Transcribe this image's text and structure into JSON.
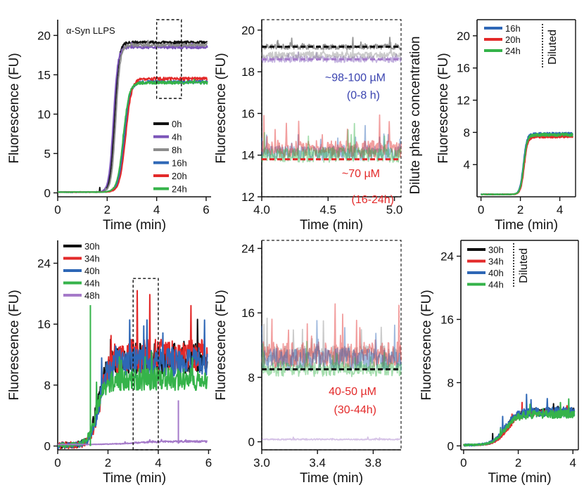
{
  "colors": {
    "black": "#111111",
    "purple": "#7b55b8",
    "gray": "#8c8c8c",
    "blue": "#2e67b6",
    "red": "#e32a2a",
    "green": "#35b34a",
    "violet": "#a57ac9",
    "annot_blue": "#3b44b0",
    "annot_red": "#e32a2a"
  },
  "chart_data": [
    {
      "id": "A",
      "type": "line",
      "annotation": "α-Syn LLPS",
      "xlabel": "Time (min)",
      "ylabel": "Fluorescence (FU)",
      "xlim": [
        0,
        6.2
      ],
      "ylim": [
        -0.5,
        22
      ],
      "xticks": [
        0,
        2,
        4,
        6
      ],
      "yticks": [
        0,
        5,
        10,
        15,
        20
      ],
      "legend_position": "right",
      "inset_box": {
        "x": [
          4,
          5
        ],
        "y": [
          12,
          23
        ]
      },
      "series": [
        {
          "name": "0h",
          "color": "black",
          "baseline": 0.1,
          "plateau": 19.1,
          "t_mid": 2.3,
          "width": 0.09
        },
        {
          "name": "4h",
          "color": "purple",
          "baseline": 0.1,
          "plateau": 18.5,
          "t_mid": 2.25,
          "width": 0.09
        },
        {
          "name": "8h",
          "color": "gray",
          "baseline": 0.1,
          "plateau": 18.8,
          "t_mid": 2.35,
          "width": 0.09
        },
        {
          "name": "16h",
          "color": "blue",
          "baseline": 0.1,
          "plateau": 14.1,
          "t_mid": 2.7,
          "width": 0.12
        },
        {
          "name": "20h",
          "color": "red",
          "baseline": 0.1,
          "plateau": 14.5,
          "t_mid": 2.75,
          "width": 0.12
        },
        {
          "name": "24h",
          "color": "green",
          "baseline": 0.1,
          "plateau": 14.0,
          "t_mid": 2.65,
          "width": 0.12
        }
      ]
    },
    {
      "id": "B",
      "type": "line",
      "xlabel": "Time (min)",
      "ylabel": "Fluorescence (FU)",
      "right_label": "Dilute phase concentration",
      "xlim": [
        4.0,
        5.05
      ],
      "ylim": [
        12,
        20.5
      ],
      "xticks": [
        4.0,
        4.5,
        5.0
      ],
      "xtick_labels": [
        "4.0",
        "4.5",
        "5.0"
      ],
      "yticks": [
        12,
        14,
        16,
        18,
        20
      ],
      "dashed_lines": [
        {
          "y": 19.2,
          "color": "black"
        },
        {
          "y": 18.6,
          "color": "violet"
        },
        {
          "y": 13.8,
          "color": "red"
        }
      ],
      "annotations": [
        {
          "text": "~98-100 µM",
          "color": "annot_blue"
        },
        {
          "text": "(0-8 h)",
          "color": "annot_blue"
        },
        {
          "text": "~70 µM",
          "color": "annot_red"
        },
        {
          "text": "(16-24h)",
          "color": "annot_red"
        }
      ],
      "series": [
        {
          "color": "black",
          "level": 19.2,
          "noise": 0.12
        },
        {
          "color": "purple",
          "level": 18.6,
          "noise": 0.15
        },
        {
          "color": "gray",
          "level": 18.8,
          "noise": 0.15
        },
        {
          "color": "blue",
          "level": 14.1,
          "noise": 0.35
        },
        {
          "color": "red",
          "level": 14.3,
          "noise": 0.4
        },
        {
          "color": "green",
          "level": 14.0,
          "noise": 0.35
        }
      ]
    },
    {
      "id": "C",
      "type": "line",
      "xlabel": "Time (min)",
      "ylabel": "Fluorescence (FU)",
      "xlim": [
        -0.2,
        4.8
      ],
      "ylim": [
        0,
        22
      ],
      "xticks": [
        0,
        2,
        4
      ],
      "yticks": [
        4,
        8,
        12,
        16,
        20
      ],
      "legend_position": "top",
      "legend_note": "Diluted",
      "series": [
        {
          "name": "16h",
          "color": "blue",
          "baseline": 0.3,
          "plateau": 7.8,
          "t_mid": 2.15,
          "width": 0.09
        },
        {
          "name": "20h",
          "color": "red",
          "baseline": 0.3,
          "plateau": 7.5,
          "t_mid": 2.2,
          "width": 0.09
        },
        {
          "name": "24h",
          "color": "green",
          "baseline": 0.3,
          "plateau": 7.7,
          "t_mid": 2.17,
          "width": 0.09
        }
      ]
    },
    {
      "id": "D",
      "type": "line",
      "xlabel": "Time (min)",
      "ylabel": "Fluorescence (FU)",
      "xlim": [
        0,
        6.1
      ],
      "ylim": [
        -0.5,
        27
      ],
      "xticks": [
        0,
        2,
        4,
        6
      ],
      "yticks": [
        0,
        8,
        16,
        24
      ],
      "legend_position": "top-left",
      "inset_box": {
        "x": [
          3,
          4
        ],
        "y": [
          -0.5,
          22
        ]
      },
      "series": [
        {
          "name": "30h",
          "color": "black",
          "baseline": 0.1,
          "plateau": 11.5,
          "t_mid": 1.6,
          "width": 0.18,
          "noise": 1.6
        },
        {
          "name": "34h",
          "color": "red",
          "baseline": 0.1,
          "plateau": 11.8,
          "t_mid": 1.7,
          "width": 0.18,
          "noise": 1.8
        },
        {
          "name": "40h",
          "color": "blue",
          "baseline": 0.1,
          "plateau": 11.0,
          "t_mid": 1.65,
          "width": 0.18,
          "noise": 1.6
        },
        {
          "name": "44h",
          "color": "green",
          "baseline": 0.1,
          "plateau": 8.8,
          "t_mid": 1.55,
          "width": 0.18,
          "noise": 1.2
        },
        {
          "name": "48h",
          "color": "violet",
          "baseline": 0.2,
          "plateau": 0.6,
          "t_mid": 3.0,
          "width": 0.5,
          "noise": 0.1
        }
      ]
    },
    {
      "id": "E",
      "type": "line",
      "xlabel": "Time (min)",
      "ylabel": "Fluorescence (FU)",
      "xlim": [
        3.0,
        4.0
      ],
      "ylim": [
        -1,
        25
      ],
      "xticks": [
        3.0,
        3.4,
        3.8
      ],
      "xtick_labels": [
        "3.0",
        "3.4",
        "3.8"
      ],
      "yticks": [
        0,
        8,
        16,
        24
      ],
      "dashed_lines": [
        {
          "y": 9.0,
          "color": "black"
        }
      ],
      "annotations": [
        {
          "text": "40-50 µM",
          "color": "annot_red"
        },
        {
          "text": "(30-44h)",
          "color": "annot_red"
        }
      ],
      "series": [
        {
          "color": "gray",
          "level": 10.5,
          "noise": 1.4
        },
        {
          "color": "red",
          "level": 10.8,
          "noise": 1.6
        },
        {
          "color": "blue",
          "level": 10.2,
          "noise": 1.4
        },
        {
          "color": "green",
          "level": 9.0,
          "noise": 0.9
        },
        {
          "color": "violet",
          "level": 0.3,
          "noise": 0.08
        }
      ]
    },
    {
      "id": "F",
      "type": "line",
      "xlabel": "Time (min)",
      "ylabel": "Fluorescence (FU)",
      "xlim": [
        -0.1,
        4.2
      ],
      "ylim": [
        -0.5,
        26
      ],
      "xticks": [
        0,
        2,
        4
      ],
      "yticks": [
        0,
        8,
        16,
        24
      ],
      "legend_position": "top-left",
      "legend_note": "Diluted",
      "series": [
        {
          "name": "30h",
          "color": "black",
          "baseline": 0.1,
          "plateau": 4.4,
          "t_mid": 1.55,
          "width": 0.22,
          "noise": 0.35
        },
        {
          "name": "34h",
          "color": "red",
          "baseline": 0.1,
          "plateau": 4.2,
          "t_mid": 1.6,
          "width": 0.22,
          "noise": 0.35
        },
        {
          "name": "40h",
          "color": "blue",
          "baseline": 0.1,
          "plateau": 4.3,
          "t_mid": 1.5,
          "width": 0.22,
          "noise": 0.5
        },
        {
          "name": "44h",
          "color": "green",
          "baseline": 0.1,
          "plateau": 4.0,
          "t_mid": 1.5,
          "width": 0.22,
          "noise": 0.4
        }
      ]
    }
  ]
}
